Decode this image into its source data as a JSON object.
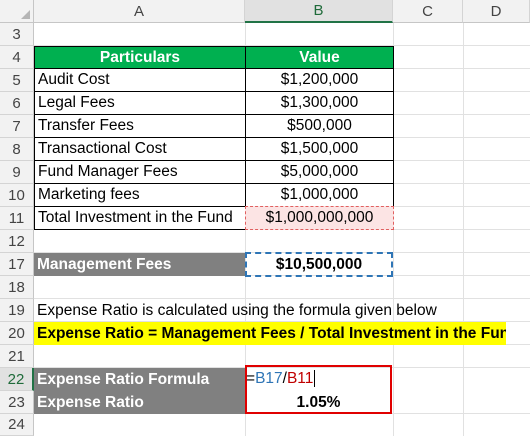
{
  "columns": [
    "A",
    "B",
    "C",
    "D"
  ],
  "row_numbers": [
    "3",
    "4",
    "5",
    "6",
    "7",
    "8",
    "9",
    "10",
    "11",
    "12",
    "17",
    "18",
    "19",
    "20",
    "21",
    "22",
    "23",
    "24"
  ],
  "table": {
    "header_particulars": "Particulars",
    "header_value": "Value",
    "rows": [
      {
        "label": "Audit Cost",
        "value": "$1,200,000"
      },
      {
        "label": "Legal Fees",
        "value": "$1,300,000"
      },
      {
        "label": "Transfer Fees",
        "value": "$500,000"
      },
      {
        "label": "Transactional Cost",
        "value": "$1,500,000"
      },
      {
        "label": "Fund Manager Fees",
        "value": "$5,000,000"
      },
      {
        "label": "Marketing fees",
        "value": "$1,000,000"
      },
      {
        "label": "Total Investment in the Fund",
        "value": "$1,000,000,000"
      }
    ]
  },
  "management_fees": {
    "label": "Management Fees",
    "value": "$10,500,000"
  },
  "note": "Expense Ratio is calculated using the formula given below",
  "formula_text": "Expense Ratio = Management Fees / Total Investment in the Fund",
  "expense_formula": {
    "label": "Expense Ratio Formula",
    "eq": "=",
    "ref1": "B17",
    "slash": "/",
    "ref2": "B11"
  },
  "expense_ratio": {
    "label": "Expense Ratio",
    "value": "1.05%"
  },
  "colors": {
    "header_green": "#00b050",
    "label_grey": "#808080",
    "highlight_yellow": "#ffff00",
    "error_red": "#e00000",
    "selection_blue": "#2e75b6"
  }
}
